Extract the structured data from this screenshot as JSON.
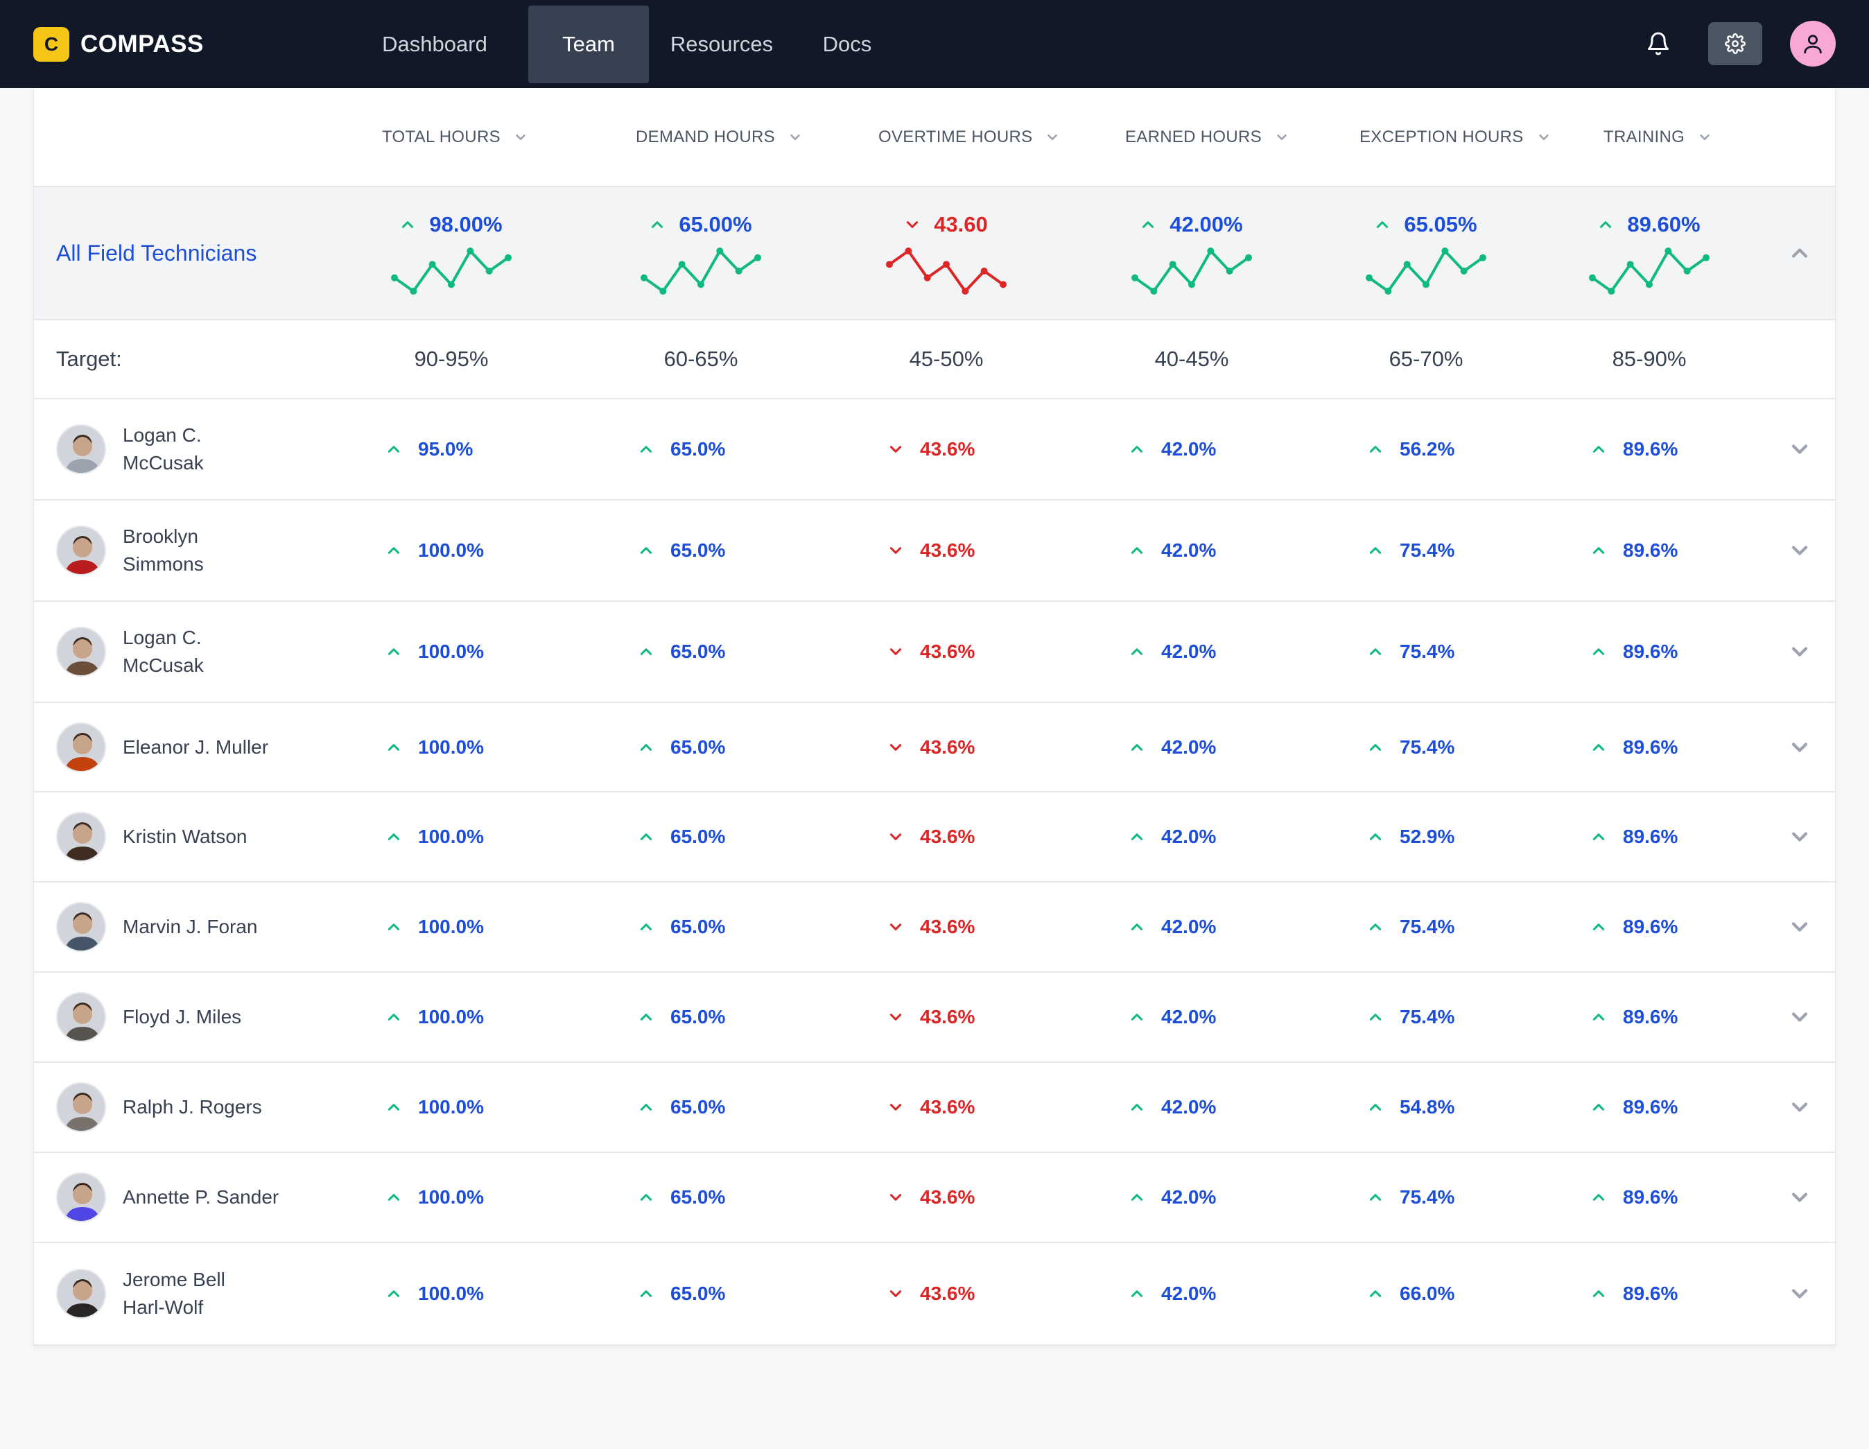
{
  "app": {
    "brand_letter": "C",
    "brand_name": "COMPASS"
  },
  "nav": {
    "tabs": [
      {
        "label": "Dashboard",
        "active": false
      },
      {
        "label": "Team",
        "active": true
      },
      {
        "label": "Resources",
        "active": false
      },
      {
        "label": "Docs",
        "active": false
      }
    ],
    "icons": [
      "bell-icon",
      "gear-icon",
      "user-icon"
    ]
  },
  "table": {
    "columns": [
      {
        "label": "TOTAL HOURS"
      },
      {
        "label": "DEMAND HOURS"
      },
      {
        "label": "OVERTIME HOURS"
      },
      {
        "label": "EARNED HOURS"
      },
      {
        "label": "EXCEPTION HOURS"
      },
      {
        "label": "TRAINING"
      }
    ],
    "summary": {
      "label": "All Field Technicians",
      "values": [
        {
          "value": "98.00%",
          "trend": "up",
          "spark": [
            3,
            1,
            5,
            2,
            7,
            4,
            6
          ]
        },
        {
          "value": "65.00%",
          "trend": "up",
          "spark": [
            3,
            1,
            5,
            2,
            7,
            4,
            6
          ]
        },
        {
          "value": "43.60",
          "trend": "down",
          "spark": [
            5,
            7,
            3,
            5,
            1,
            4,
            2
          ]
        },
        {
          "value": "42.00%",
          "trend": "up",
          "spark": [
            3,
            1,
            5,
            2,
            7,
            4,
            6
          ]
        },
        {
          "value": "65.05%",
          "trend": "up",
          "spark": [
            3,
            1,
            5,
            2,
            7,
            4,
            6
          ]
        },
        {
          "value": "89.60%",
          "trend": "up",
          "spark": [
            3,
            1,
            5,
            2,
            7,
            4,
            6
          ]
        }
      ]
    },
    "target": {
      "label": "Target:",
      "values": [
        "90-95%",
        "60-65%",
        "45-50%",
        "40-45%",
        "65-70%",
        "85-90%"
      ]
    },
    "rows": [
      {
        "name": "Logan C.\nMcCusak",
        "avatar": "#9ca3af",
        "values": [
          "95.0%",
          "65.0%",
          "43.6%",
          "42.0%",
          "56.2%",
          "89.6%"
        ]
      },
      {
        "name": "Brooklyn\nSimmons",
        "avatar": "#b91c1c",
        "values": [
          "100.0%",
          "65.0%",
          "43.6%",
          "42.0%",
          "75.4%",
          "89.6%"
        ]
      },
      {
        "name": "Logan C.\nMcCusak",
        "avatar": "#6b4f3a",
        "values": [
          "100.0%",
          "65.0%",
          "43.6%",
          "42.0%",
          "75.4%",
          "89.6%"
        ]
      },
      {
        "name": "Eleanor J. Muller",
        "avatar": "#c2410c",
        "values": [
          "100.0%",
          "65.0%",
          "43.6%",
          "42.0%",
          "75.4%",
          "89.6%"
        ]
      },
      {
        "name": "Kristin Watson",
        "avatar": "#3f2d22",
        "values": [
          "100.0%",
          "65.0%",
          "43.6%",
          "42.0%",
          "52.9%",
          "89.6%"
        ]
      },
      {
        "name": "Marvin J. Foran",
        "avatar": "#475569",
        "values": [
          "100.0%",
          "65.0%",
          "43.6%",
          "42.0%",
          "75.4%",
          "89.6%"
        ]
      },
      {
        "name": "Floyd J. Miles",
        "avatar": "#57534e",
        "values": [
          "100.0%",
          "65.0%",
          "43.6%",
          "42.0%",
          "75.4%",
          "89.6%"
        ]
      },
      {
        "name": "Ralph J. Rogers",
        "avatar": "#78716c",
        "values": [
          "100.0%",
          "65.0%",
          "43.6%",
          "42.0%",
          "54.8%",
          "89.6%"
        ]
      },
      {
        "name": "Annette P. Sander",
        "avatar": "#4f46e5",
        "values": [
          "100.0%",
          "65.0%",
          "43.6%",
          "42.0%",
          "75.4%",
          "89.6%"
        ]
      },
      {
        "name": "Jerome Bell\nHarl-Wolf",
        "avatar": "#292524",
        "values": [
          "100.0%",
          "65.0%",
          "43.6%",
          "42.0%",
          "66.0%",
          "89.6%"
        ]
      }
    ]
  },
  "colors": {
    "nav_bg": "#111827",
    "brand_accent": "#f5c518",
    "value_blue": "#1d4ed8",
    "value_red": "#dc2626",
    "up_green": "#10b981",
    "down_red": "#dc2626"
  }
}
